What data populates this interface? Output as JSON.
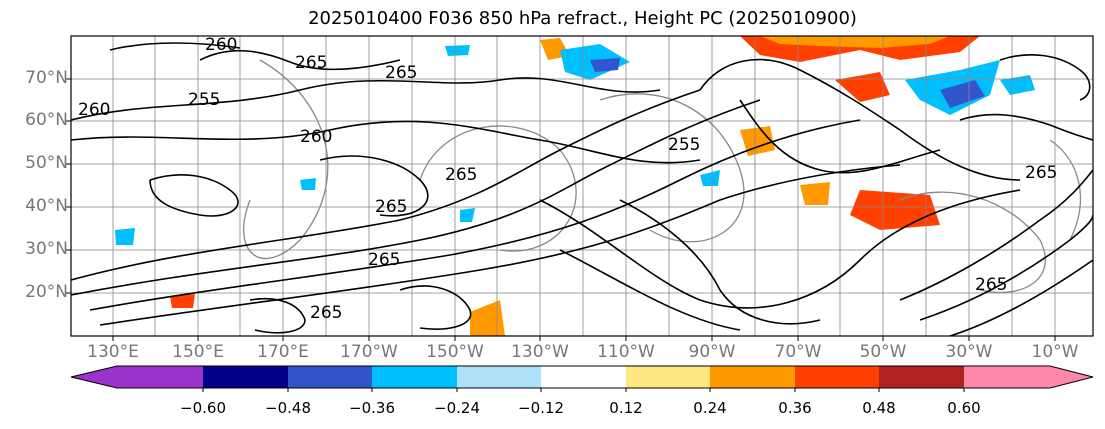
{
  "title": "2025010400 F036 850 hPa refract., Height PC (2025010900)",
  "map": {
    "lat_labels": [
      "70°N",
      "60°N",
      "50°N",
      "40°N",
      "30°N",
      "20°N"
    ],
    "lon_labels": [
      "130°E",
      "150°E",
      "170°E",
      "170°W",
      "150°W",
      "130°W",
      "110°W",
      "90°W",
      "70°W",
      "50°W",
      "30°W",
      "10°W"
    ],
    "contour_labels": [
      "260",
      "265",
      "255",
      "260",
      "265",
      "265",
      "255",
      "265",
      "265",
      "265",
      "265",
      "260",
      "265"
    ],
    "gridline_color": "#888888"
  },
  "colorbar": {
    "ticks": [
      "−0.60",
      "−0.48",
      "−0.36",
      "−0.24",
      "−0.12",
      "0.12",
      "0.24",
      "0.36",
      "0.48",
      "0.60"
    ],
    "colors": [
      "#9933cc",
      "#00008b",
      "#3355cc",
      "#00bfff",
      "#aee0fa",
      "#ffffff",
      "#ffe680",
      "#ff9900",
      "#ff4000",
      "#b22222",
      "#ff88aa"
    ]
  }
}
